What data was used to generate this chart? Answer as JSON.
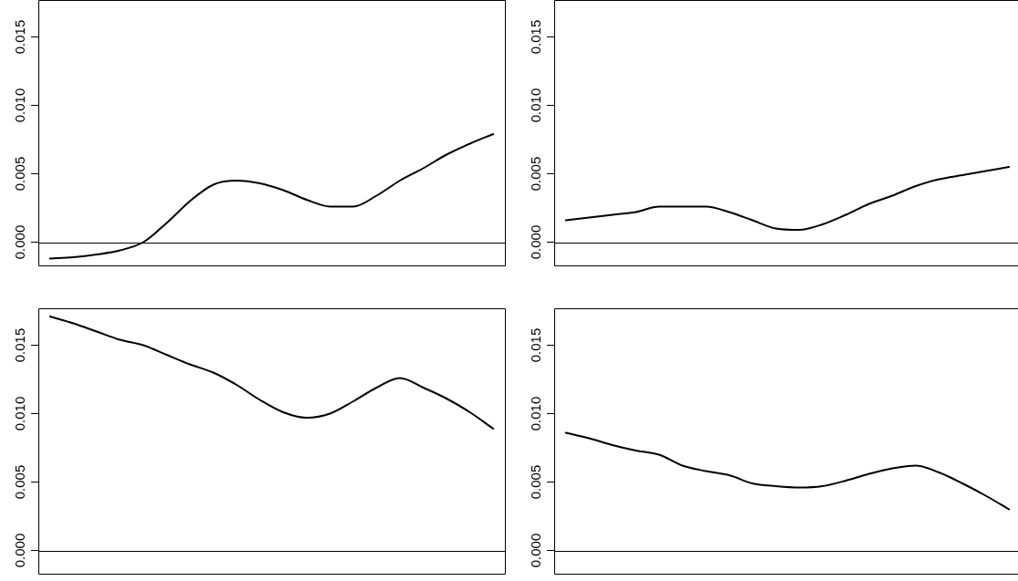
{
  "chart_data": [
    {
      "type": "line",
      "categories": [
        null,
        null,
        null,
        null,
        null,
        null,
        null,
        null,
        null,
        null,
        null,
        null,
        null,
        null,
        null,
        null,
        null,
        null,
        null,
        null
      ],
      "color": "#000000",
      "values": [
        -0.0012,
        -0.0011,
        -0.0009,
        -0.0006,
        0.0,
        0.0014,
        0.003,
        0.0042,
        0.0045,
        0.0043,
        0.0038,
        0.0031,
        0.0026,
        0.0026,
        0.0034,
        0.0045,
        0.0054,
        0.0064,
        0.0072,
        0.0079
      ],
      "ylim": [
        -0.0017,
        0.0177
      ],
      "yticks": [
        {
          "value": 0,
          "label": "0.000"
        },
        {
          "value": 0.005,
          "label": "0.005"
        },
        {
          "value": 0.01,
          "label": "0.010"
        },
        {
          "value": 0.015,
          "label": "0.015"
        }
      ],
      "ref_lines": [
        {
          "axis": "y",
          "value": 0
        }
      ],
      "tick_labels": "y",
      "grid": false,
      "legend": false
    },
    {
      "type": "line",
      "categories": [
        null,
        null,
        null,
        null,
        null,
        null,
        null,
        null,
        null,
        null,
        null,
        null,
        null,
        null,
        null,
        null,
        null,
        null,
        null,
        null
      ],
      "color": "#000000",
      "values": [
        0.0016,
        0.0018,
        0.002,
        0.0022,
        0.0026,
        0.0026,
        0.0026,
        0.0022,
        0.0016,
        0.001,
        0.0009,
        0.0013,
        0.002,
        0.0028,
        0.0034,
        0.0041,
        0.0046,
        0.0049,
        0.0052,
        0.0055
      ],
      "ylim": [
        -0.0017,
        0.0177
      ],
      "yticks": [
        {
          "value": 0,
          "label": "0.000"
        },
        {
          "value": 0.005,
          "label": "0.005"
        },
        {
          "value": 0.01,
          "label": "0.010"
        },
        {
          "value": 0.015,
          "label": "0.015"
        }
      ],
      "ref_lines": [
        {
          "axis": "y",
          "value": 0
        }
      ],
      "tick_labels": "y",
      "grid": false,
      "legend": false
    },
    {
      "type": "line",
      "categories": [
        null,
        null,
        null,
        null,
        null,
        null,
        null,
        null,
        null,
        null,
        null,
        null,
        null,
        null,
        null,
        null,
        null,
        null,
        null,
        null
      ],
      "color": "#000000",
      "values": [
        0.0171,
        0.0166,
        0.016,
        0.0154,
        0.015,
        0.0143,
        0.0136,
        0.013,
        0.0121,
        0.011,
        0.0101,
        0.0097,
        0.01,
        0.0109,
        0.0119,
        0.0126,
        0.0119,
        0.0111,
        0.0101,
        0.0089
      ],
      "ylim": [
        -0.0017,
        0.0177
      ],
      "yticks": [
        {
          "value": 0,
          "label": "0.000"
        },
        {
          "value": 0.005,
          "label": "0.005"
        },
        {
          "value": 0.01,
          "label": "0.010"
        },
        {
          "value": 0.015,
          "label": "0.015"
        }
      ],
      "ref_lines": [
        {
          "axis": "y",
          "value": 0
        }
      ],
      "tick_labels": "y",
      "grid": false,
      "legend": false
    },
    {
      "type": "line",
      "categories": [
        null,
        null,
        null,
        null,
        null,
        null,
        null,
        null,
        null,
        null,
        null,
        null,
        null,
        null,
        null,
        null,
        null,
        null,
        null,
        null
      ],
      "color": "#000000",
      "values": [
        0.0086,
        0.0082,
        0.0077,
        0.0073,
        0.007,
        0.0062,
        0.0058,
        0.0055,
        0.0049,
        0.0047,
        0.0046,
        0.0047,
        0.0051,
        0.0056,
        0.006,
        0.0062,
        0.0057,
        0.0049,
        0.004,
        0.003
      ],
      "ylim": [
        -0.0017,
        0.0177
      ],
      "yticks": [
        {
          "value": 0,
          "label": "0.000"
        },
        {
          "value": 0.005,
          "label": "0.005"
        },
        {
          "value": 0.01,
          "label": "0.010"
        },
        {
          "value": 0.015,
          "label": "0.015"
        }
      ],
      "ref_lines": [
        {
          "axis": "y",
          "value": 0
        }
      ],
      "tick_labels": "y",
      "grid": false,
      "legend": false
    }
  ]
}
